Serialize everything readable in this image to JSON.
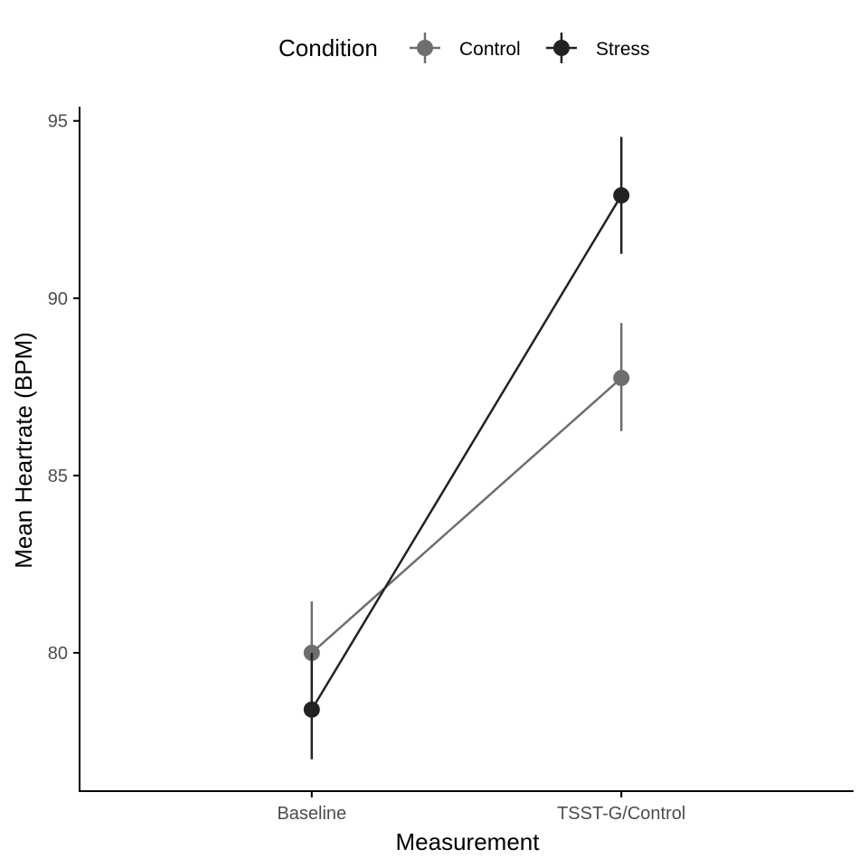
{
  "chart_data": {
    "type": "line",
    "xlabel": "Measurement",
    "ylabel": "Mean Heartrate (BPM)",
    "categories": [
      "Baseline",
      "TSST-G/Control"
    ],
    "yticks": [
      80,
      85,
      90,
      95
    ],
    "ylim": [
      76.1,
      95.4
    ],
    "grid": false,
    "legend": {
      "title": "Condition",
      "placement": "top"
    },
    "series": [
      {
        "name": "Control",
        "color": "#6e6e6e",
        "values": [
          80.0,
          87.75
        ],
        "error_low": [
          78.6,
          86.25
        ],
        "error_high": [
          81.45,
          89.3
        ]
      },
      {
        "name": "Stress",
        "color": "#222222",
        "values": [
          78.4,
          92.9
        ],
        "error_low": [
          77.0,
          91.25
        ],
        "error_high": [
          80.0,
          94.55
        ]
      }
    ]
  }
}
